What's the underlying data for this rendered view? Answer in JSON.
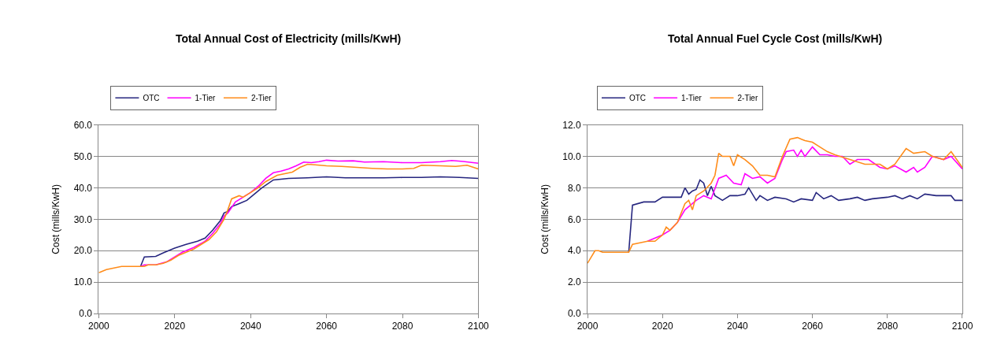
{
  "chart_data": [
    {
      "type": "line",
      "title": "Total Annual Cost of Electricity (mills/KwH)",
      "ylabel": "Cost (mills/KwH)",
      "xlim": [
        2000,
        2100
      ],
      "xticks": [
        2000,
        2020,
        2040,
        2060,
        2080,
        2100
      ],
      "ylim": [
        0,
        60
      ],
      "yticks": [
        {
          "value": 0,
          "label": "0.0"
        },
        {
          "value": 10,
          "label": "10.0"
        },
        {
          "value": 20,
          "label": "20.0"
        },
        {
          "value": 30,
          "label": "30.0"
        },
        {
          "value": 40,
          "label": "40.0"
        },
        {
          "value": 50,
          "label": "50.0"
        },
        {
          "value": 60,
          "label": "60.0"
        }
      ],
      "grid": "y",
      "legend": "top",
      "marker": "none",
      "line_style": "solid",
      "series": [
        {
          "name": "OTC",
          "color": "#26267f",
          "x": [
            2011,
            2012,
            2015,
            2017,
            2020,
            2023,
            2026,
            2028,
            2030,
            2032,
            2033,
            2034,
            2035,
            2037,
            2039,
            2041,
            2043,
            2046,
            2050,
            2055,
            2060,
            2065,
            2070,
            2075,
            2080,
            2085,
            2090,
            2095,
            2100
          ],
          "values": [
            15,
            18,
            18.2,
            19.3,
            20.8,
            22,
            23,
            24,
            26.5,
            29.5,
            32,
            32.5,
            34,
            35,
            36,
            38,
            40,
            42.5,
            43,
            43.2,
            43.5,
            43.2,
            43.2,
            43.2,
            43.3,
            43.3,
            43.5,
            43.3,
            43
          ]
        },
        {
          "name": "1-Tier",
          "color": "#ff00ff",
          "x": [
            2011,
            2012,
            2015,
            2018,
            2020,
            2022,
            2025,
            2028,
            2030,
            2032,
            2033,
            2034,
            2036,
            2038,
            2040,
            2042,
            2044,
            2046,
            2048,
            2050,
            2052,
            2054,
            2056,
            2058,
            2060,
            2063,
            2067,
            2070,
            2075,
            2080,
            2085,
            2090,
            2093,
            2096,
            2100
          ],
          "values": [
            15,
            15.5,
            15.5,
            16.5,
            18,
            19.5,
            21,
            23,
            25.5,
            28.5,
            31,
            32,
            35.5,
            37,
            38.5,
            40.5,
            43,
            44.8,
            45.3,
            46,
            47,
            48.2,
            48,
            48.3,
            48.8,
            48.5,
            48.6,
            48.2,
            48.3,
            48,
            48,
            48.3,
            48.7,
            48.4,
            47.8
          ]
        },
        {
          "name": "2-Tier",
          "color": "#ff8c1a",
          "x": [
            2000,
            2002,
            2004,
            2006,
            2012,
            2013,
            2015,
            2017,
            2019,
            2021,
            2023,
            2025,
            2027,
            2029,
            2031,
            2033,
            2034,
            2035,
            2037,
            2038,
            2040,
            2042,
            2044,
            2047,
            2049,
            2051,
            2053,
            2055,
            2057,
            2060,
            2064,
            2068,
            2072,
            2076,
            2080,
            2083,
            2085,
            2090,
            2094,
            2097,
            2100
          ],
          "values": [
            13,
            14,
            14.5,
            15,
            15,
            15.5,
            15.5,
            16,
            17,
            18.5,
            19.5,
            20.5,
            22,
            23.5,
            26,
            30,
            33,
            36.5,
            37.5,
            37,
            38.5,
            40,
            42,
            44,
            44.5,
            45,
            46.5,
            47.5,
            47.3,
            47,
            46.8,
            46.5,
            46.2,
            46,
            46,
            46.2,
            47.2,
            47,
            46.8,
            47.2,
            46
          ]
        }
      ]
    },
    {
      "type": "line",
      "title": "Total Annual Fuel Cycle Cost (mills/KwH)",
      "ylabel": "Cost (mills/KwH)",
      "xlim": [
        2000,
        2100
      ],
      "xticks": [
        2000,
        2020,
        2040,
        2060,
        2080,
        2100
      ],
      "ylim": [
        0,
        12
      ],
      "yticks": [
        {
          "value": 0,
          "label": "0.0"
        },
        {
          "value": 2,
          "label": "2.0"
        },
        {
          "value": 4,
          "label": "4.0"
        },
        {
          "value": 6,
          "label": "6.0"
        },
        {
          "value": 8,
          "label": "8.0"
        },
        {
          "value": 10,
          "label": "10.0"
        },
        {
          "value": 12,
          "label": "12.0"
        }
      ],
      "grid": "y",
      "legend": "top",
      "marker": "none",
      "line_style": "solid",
      "series": [
        {
          "name": "OTC",
          "color": "#26267f",
          "x": [
            2011,
            2012,
            2015,
            2018,
            2020,
            2022,
            2025,
            2026,
            2027,
            2028,
            2029,
            2030,
            2031,
            2032,
            2033,
            2034,
            2036,
            2038,
            2040,
            2042,
            2043,
            2045,
            2046,
            2048,
            2050,
            2053,
            2055,
            2057,
            2060,
            2061,
            2063,
            2065,
            2067,
            2070,
            2072,
            2074,
            2076,
            2080,
            2082,
            2084,
            2086,
            2088,
            2090,
            2093,
            2097,
            2098,
            2100
          ],
          "values": [
            3.9,
            6.9,
            7.1,
            7.1,
            7.4,
            7.4,
            7.4,
            8.0,
            7.6,
            7.8,
            7.9,
            8.5,
            8.3,
            7.5,
            8.1,
            7.5,
            7.2,
            7.5,
            7.5,
            7.6,
            8.0,
            7.2,
            7.5,
            7.2,
            7.4,
            7.3,
            7.1,
            7.3,
            7.2,
            7.7,
            7.3,
            7.5,
            7.2,
            7.3,
            7.4,
            7.2,
            7.3,
            7.4,
            7.5,
            7.3,
            7.5,
            7.3,
            7.6,
            7.5,
            7.5,
            7.2,
            7.2
          ]
        },
        {
          "name": "1-Tier",
          "color": "#ff00ff",
          "x": [
            2016,
            2020,
            2022,
            2024,
            2026,
            2028,
            2029,
            2031,
            2033,
            2035,
            2037,
            2039,
            2041,
            2042,
            2044,
            2046,
            2048,
            2050,
            2052,
            2053,
            2055,
            2056,
            2057,
            2058,
            2060,
            2062,
            2064,
            2066,
            2068,
            2070,
            2072,
            2075,
            2078,
            2080,
            2082,
            2085,
            2087,
            2088,
            2090,
            2092,
            2095,
            2097,
            2100
          ],
          "values": [
            4.6,
            5.0,
            5.3,
            5.8,
            6.6,
            7.0,
            7.2,
            7.5,
            7.3,
            8.6,
            8.8,
            8.3,
            8.2,
            8.9,
            8.6,
            8.7,
            8.3,
            8.6,
            9.8,
            10.3,
            10.4,
            10.0,
            10.4,
            10.0,
            10.6,
            10.1,
            10.1,
            10.0,
            10.0,
            9.5,
            9.8,
            9.8,
            9.3,
            9.2,
            9.4,
            9.0,
            9.3,
            9.0,
            9.3,
            10.0,
            9.8,
            10.0,
            9.2
          ]
        },
        {
          "name": "2-Tier",
          "color": "#ff8c1a",
          "x": [
            2000,
            2002,
            2003,
            2004,
            2011,
            2012,
            2014,
            2016,
            2018,
            2020,
            2021,
            2022,
            2024,
            2026,
            2027,
            2028,
            2029,
            2031,
            2033,
            2034,
            2035,
            2036,
            2038,
            2039,
            2040,
            2042,
            2044,
            2046,
            2048,
            2050,
            2052,
            2054,
            2056,
            2058,
            2060,
            2062,
            2064,
            2066,
            2070,
            2074,
            2078,
            2080,
            2082,
            2085,
            2087,
            2090,
            2092,
            2095,
            2097,
            2100
          ],
          "values": [
            3.2,
            4.0,
            4.0,
            3.9,
            3.9,
            4.4,
            4.5,
            4.6,
            4.6,
            5.0,
            5.5,
            5.3,
            5.8,
            7.0,
            7.2,
            6.6,
            7.5,
            7.8,
            8.3,
            8.8,
            10.2,
            10.0,
            10.0,
            9.4,
            10.1,
            9.8,
            9.4,
            8.8,
            8.8,
            8.7,
            10.0,
            11.1,
            11.2,
            11.0,
            10.9,
            10.6,
            10.3,
            10.1,
            9.8,
            9.5,
            9.5,
            9.2,
            9.5,
            10.5,
            10.2,
            10.3,
            10.0,
            9.8,
            10.3,
            9.3
          ]
        }
      ]
    }
  ]
}
